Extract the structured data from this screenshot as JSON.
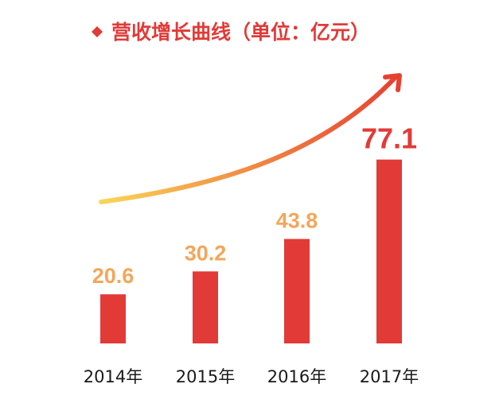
{
  "header": {
    "title": "营收增长曲线（单位：亿元）",
    "bullet_icon": "diamond-icon"
  },
  "colors": {
    "bar": "#e23a37",
    "title": "#e23a37",
    "label_normal": "#f4a65a",
    "label_highlight": "#e23a37",
    "trend_start": "#f9d657",
    "trend_end": "#e8402f"
  },
  "chart_data": {
    "type": "bar",
    "title": "营收增长曲线（单位：亿元）",
    "xlabel": "",
    "ylabel": "",
    "categories": [
      "2014年",
      "2015年",
      "2016年",
      "2017年"
    ],
    "values": [
      20.6,
      30.2,
      43.8,
      77.1
    ],
    "value_labels": [
      "20.6",
      "30.2",
      "43.8",
      "77.1"
    ],
    "highlight_index": 3,
    "ylim": [
      0,
      88
    ],
    "grid": false,
    "legend": "none",
    "trend_arrow": true
  }
}
